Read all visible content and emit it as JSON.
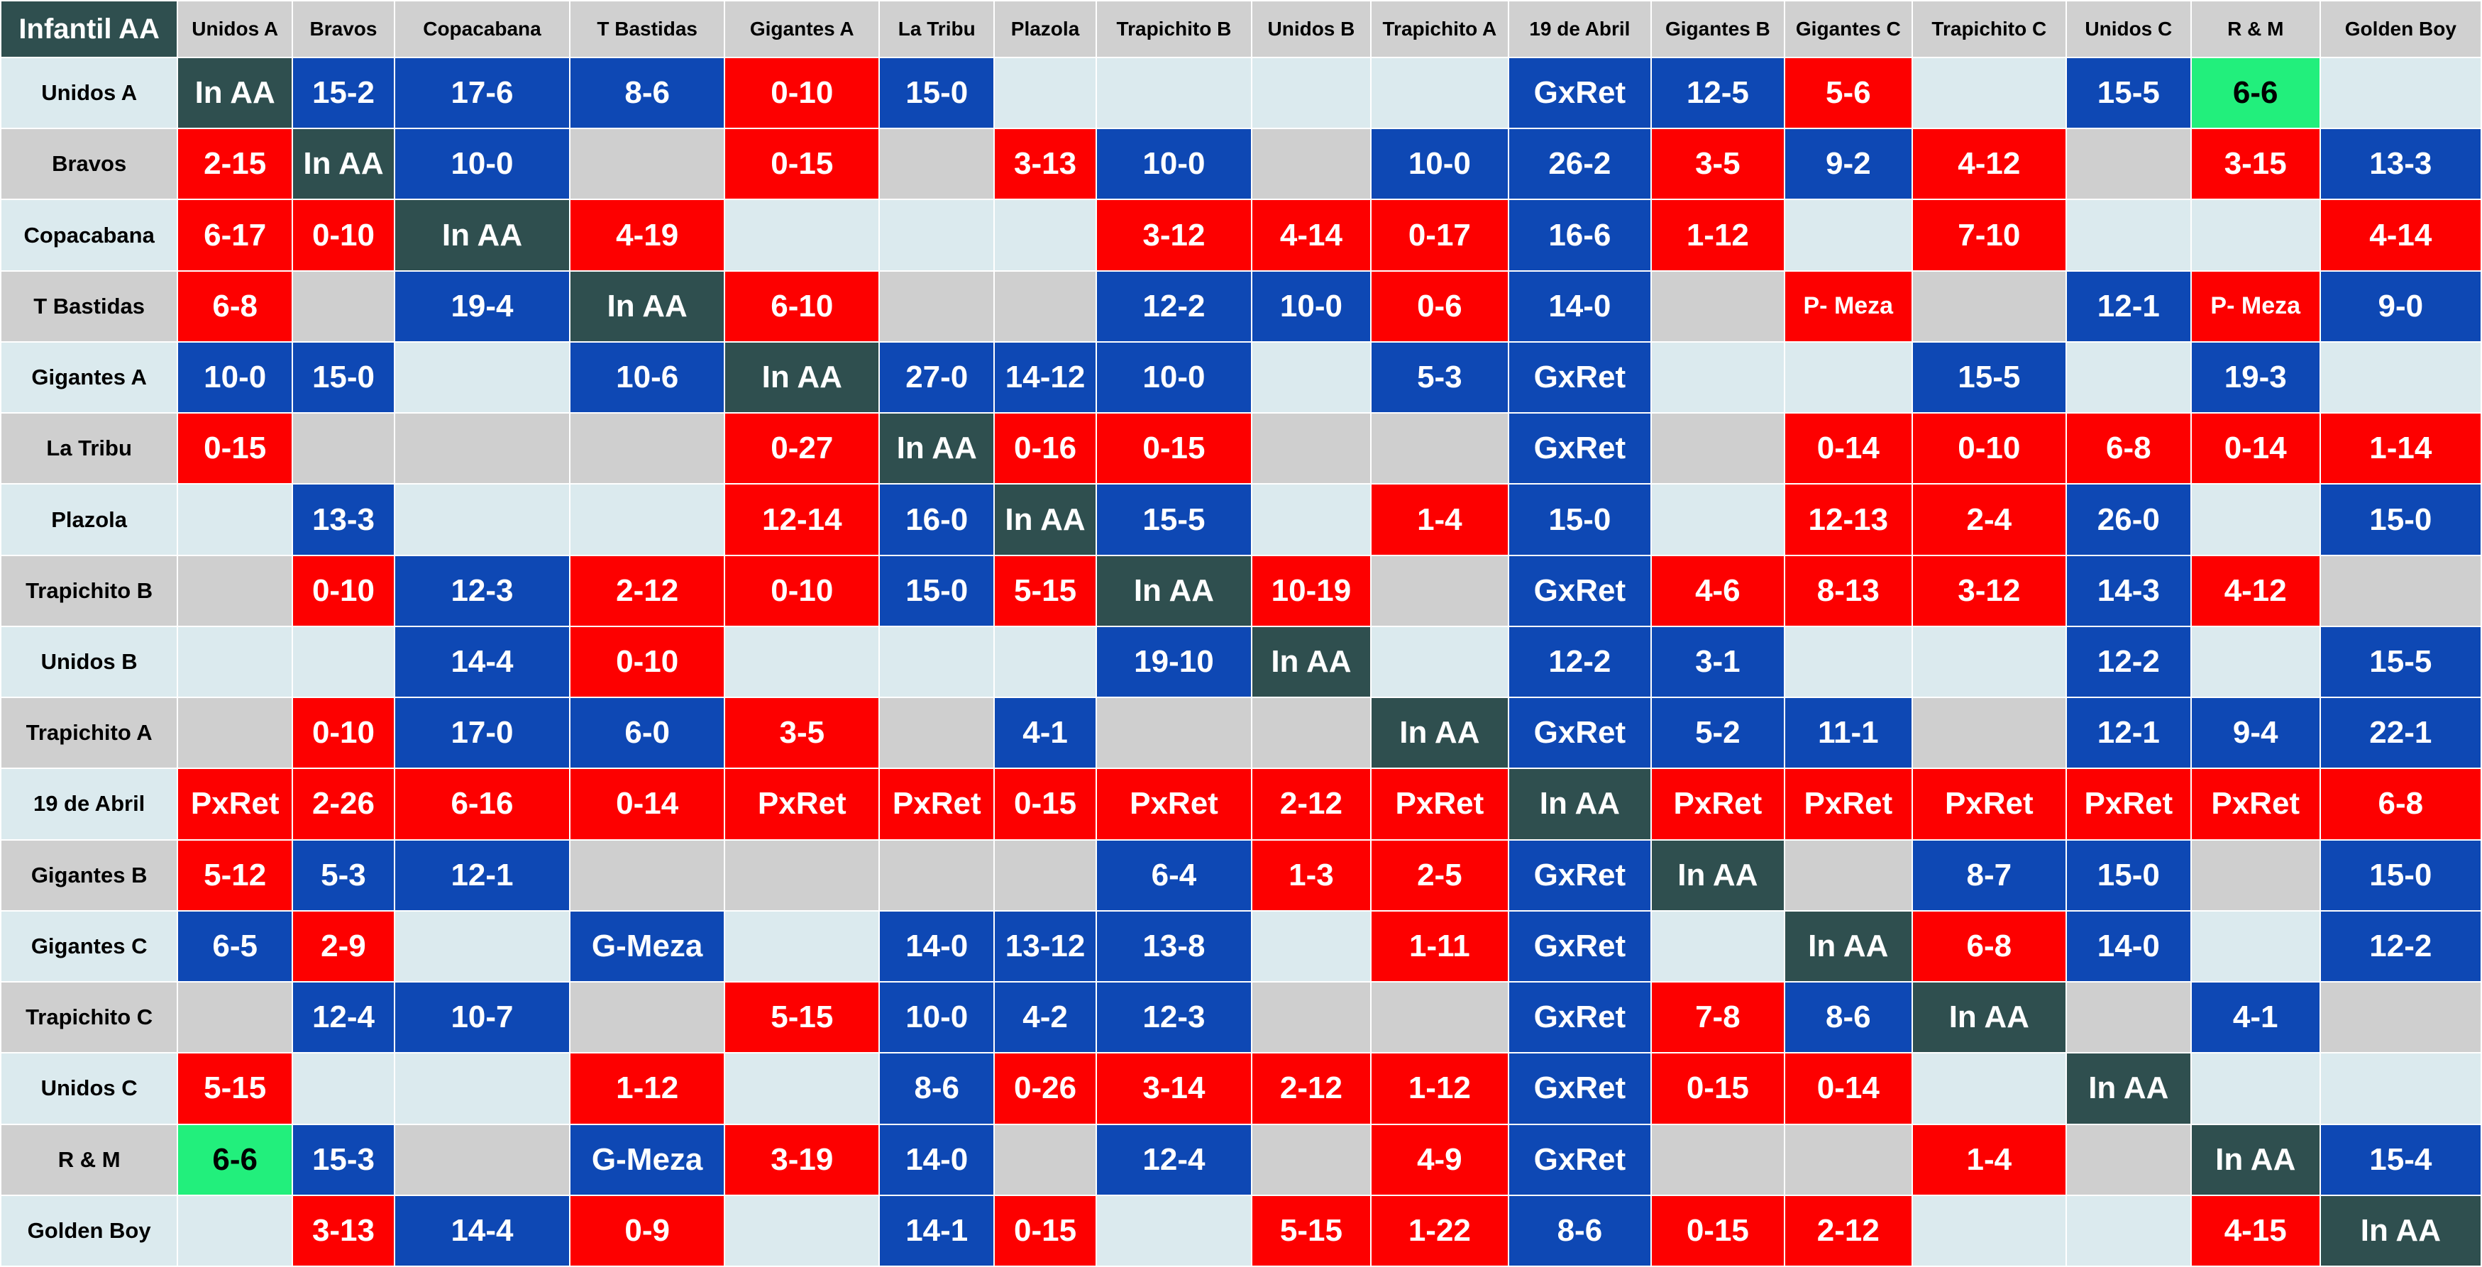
{
  "colors": {
    "win": "#0e48b4",
    "loss": "#fd0000",
    "self": "#2f4f4f",
    "tie": "#22ef7c",
    "row_light": "#dbeaee",
    "row_gray": "#cfcfcf",
    "header": "#d0d0d0"
  },
  "title": "Infantil AA",
  "teams": [
    "Unidos A",
    "Bravos",
    "Copacabana",
    "T Bastidas",
    "Gigantes A",
    "La Tribu",
    "Plazola",
    "Trapichito B",
    "Unidos B",
    "Trapichito A",
    "19 de Abril",
    "Gigantes B",
    "Gigantes C",
    "Trapichito C",
    "Unidos C",
    "R & M",
    "Golden Boy"
  ],
  "rows": [
    [
      "In AA",
      "15-2",
      "17-6",
      "8-6",
      "0-10",
      "15-0",
      "",
      "",
      "",
      "",
      "GxRet",
      "12-5",
      "5-6",
      "",
      "15-5",
      "6-6",
      ""
    ],
    [
      "2-15",
      "In AA",
      "10-0",
      "",
      "0-15",
      "",
      "3-13",
      "10-0",
      "",
      "10-0",
      "26-2",
      "3-5",
      "9-2",
      "4-12",
      "",
      "3-15",
      "13-3"
    ],
    [
      "6-17",
      "0-10",
      "In AA",
      "4-19",
      "",
      "",
      "",
      "3-12",
      "4-14",
      "0-17",
      "16-6",
      "1-12",
      "",
      "7-10",
      "",
      "",
      "4-14"
    ],
    [
      "6-8",
      "",
      "19-4",
      "In AA",
      "6-10",
      "",
      "",
      "12-2",
      "10-0",
      "0-6",
      "14-0",
      "",
      "P- Meza",
      "",
      "12-1",
      "P- Meza",
      "9-0"
    ],
    [
      "10-0",
      "15-0",
      "",
      "10-6",
      "In AA",
      "27-0",
      "14-12",
      "10-0",
      "",
      "5-3",
      "GxRet",
      "",
      "",
      "15-5",
      "",
      "19-3",
      ""
    ],
    [
      "0-15",
      "",
      "",
      "",
      "0-27",
      "In AA",
      "0-16",
      "0-15",
      "",
      "",
      "GxRet",
      "",
      "0-14",
      "0-10",
      "6-8",
      "0-14",
      "1-14"
    ],
    [
      "",
      "13-3",
      "",
      "",
      "12-14",
      "16-0",
      "In AA",
      "15-5",
      "",
      "1-4",
      "15-0",
      "",
      "12-13",
      "2-4",
      "26-0",
      "",
      "15-0"
    ],
    [
      "",
      "0-10",
      "12-3",
      "2-12",
      "0-10",
      "15-0",
      "5-15",
      "In AA",
      "10-19",
      "",
      "GxRet",
      "4-6",
      "8-13",
      "3-12",
      "14-3",
      "4-12",
      ""
    ],
    [
      "",
      "",
      "14-4",
      "0-10",
      "",
      "",
      "",
      "19-10",
      "In AA",
      "",
      "12-2",
      "3-1",
      "",
      "",
      "12-2",
      "",
      "15-5"
    ],
    [
      "",
      "0-10",
      "17-0",
      "6-0",
      "3-5",
      "",
      "4-1",
      "",
      "",
      "In AA",
      "GxRet",
      "5-2",
      "11-1",
      "",
      "12-1",
      "9-4",
      "22-1"
    ],
    [
      "PxRet",
      "2-26",
      "6-16",
      "0-14",
      "PxRet",
      "PxRet",
      "0-15",
      "PxRet",
      "2-12",
      "PxRet",
      "In AA",
      "PxRet",
      "PxRet",
      "PxRet",
      "PxRet",
      "PxRet",
      "6-8"
    ],
    [
      "5-12",
      "5-3",
      "12-1",
      "",
      "",
      "",
      "",
      "6-4",
      "1-3",
      "2-5",
      "GxRet",
      "In AA",
      "",
      "8-7",
      "15-0",
      "",
      "15-0"
    ],
    [
      "6-5",
      "2-9",
      "",
      "G-Meza",
      "",
      "14-0",
      "13-12",
      "13-8",
      "",
      "1-11",
      "GxRet",
      "",
      "In AA",
      "6-8",
      "14-0",
      "",
      "12-2"
    ],
    [
      "",
      "12-4",
      "10-7",
      "",
      "5-15",
      "10-0",
      "4-2",
      "12-3",
      "",
      "",
      "GxRet",
      "7-8",
      "8-6",
      "In AA",
      "",
      "4-1",
      ""
    ],
    [
      "5-15",
      "",
      "",
      "1-12",
      "",
      "8-6",
      "0-26",
      "3-14",
      "2-12",
      "1-12",
      "GxRet",
      "0-15",
      "0-14",
      "",
      "In AA",
      "",
      ""
    ],
    [
      "6-6",
      "15-3",
      "",
      "G-Meza",
      "3-19",
      "14-0",
      "",
      "12-4",
      "",
      "4-9",
      "GxRet",
      "",
      "",
      "1-4",
      "",
      "In AA",
      "15-4"
    ],
    [
      "",
      "3-13",
      "14-4",
      "0-9",
      "",
      "14-1",
      "0-15",
      "",
      "5-15",
      "1-22",
      "8-6",
      "0-15",
      "2-12",
      "",
      "",
      "4-15",
      "In AA"
    ]
  ]
}
